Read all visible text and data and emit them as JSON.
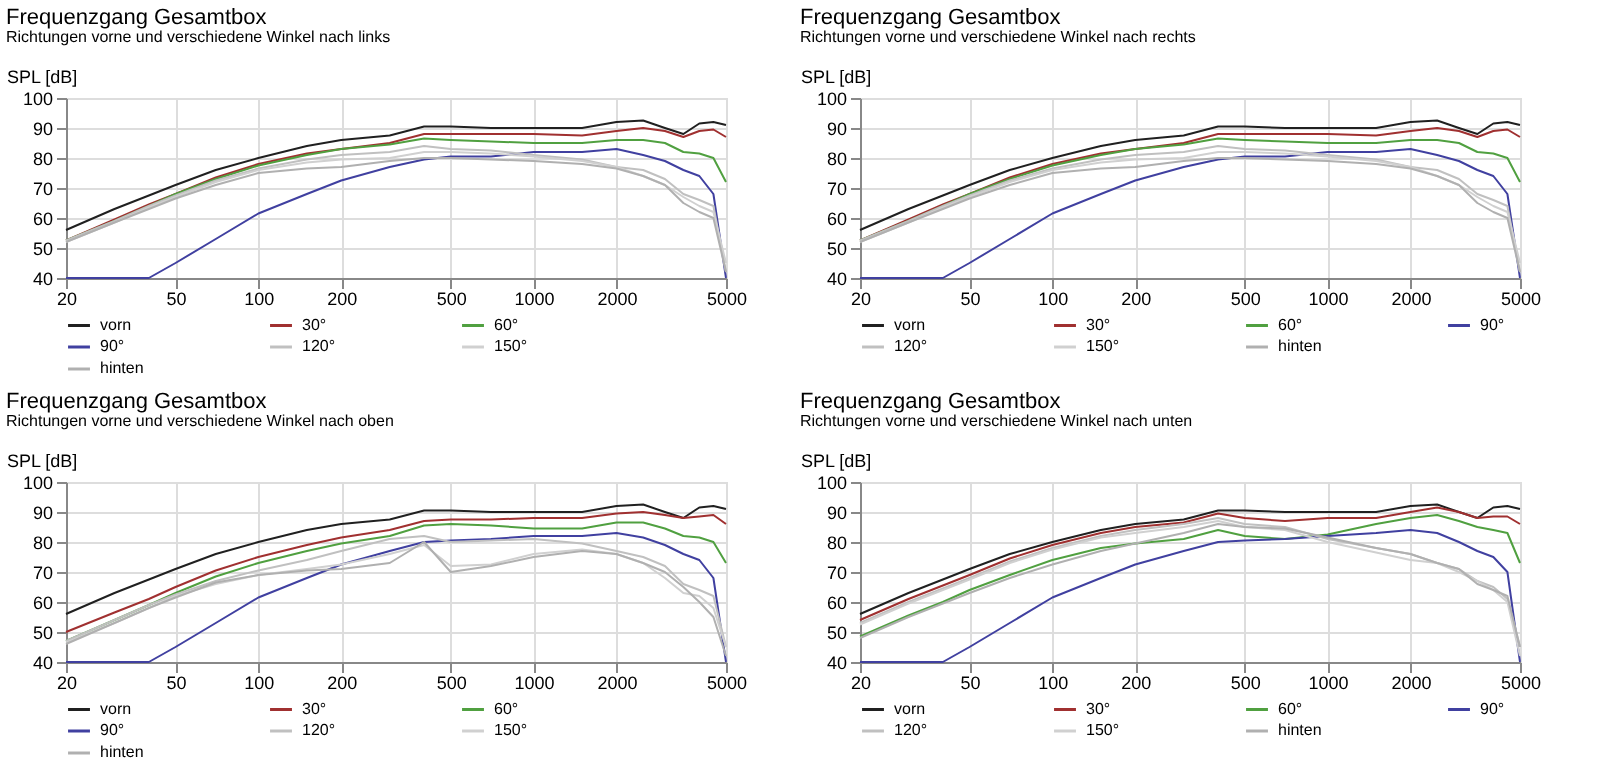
{
  "chart_data": [
    {
      "type": "line",
      "title": "Frequenzgang Gesamtbox",
      "subtitle": "Richtungen vorne und verschiedene Winkel nach links",
      "ylabel": "SPL [dB]",
      "log": "x",
      "grid": true,
      "legend": "bottom",
      "marker": "none",
      "line_style": "solid",
      "xlim": [
        20,
        5000
      ],
      "xticks": [
        20,
        50,
        100,
        200,
        500,
        1000,
        2000,
        5000
      ],
      "ylim": [
        40,
        100
      ],
      "yticks": [
        40,
        50,
        60,
        70,
        80,
        90,
        100
      ],
      "x": [
        20,
        30,
        40,
        50,
        70,
        100,
        150,
        200,
        300,
        400,
        500,
        700,
        1000,
        1500,
        2000,
        2500,
        3000,
        3500,
        4000,
        4500,
        5000
      ],
      "series": [
        {
          "name": "vorn",
          "color": "#202020",
          "values": [
            56,
            63,
            67.5,
            71,
            76,
            80,
            84,
            86,
            87.5,
            90.5,
            90.5,
            90,
            90,
            90,
            92,
            92.5,
            90,
            88,
            91.5,
            92,
            91
          ]
        },
        {
          "name": "30°",
          "color": "#a03030",
          "values": [
            52.5,
            59.5,
            64.5,
            68,
            73.5,
            78,
            81.5,
            83,
            85,
            88,
            88,
            88,
            88,
            87.5,
            89,
            90,
            89,
            87,
            89,
            89.5,
            87
          ]
        },
        {
          "name": "60°",
          "color": "#50a040",
          "values": [
            52.5,
            59,
            64,
            68,
            73,
            77.5,
            81,
            83,
            84.5,
            86.5,
            86,
            85.5,
            85,
            85,
            86,
            86,
            85,
            82,
            81.5,
            80,
            72
          ]
        },
        {
          "name": "90°",
          "color": "#4040a0",
          "values": [
            40,
            40,
            40,
            45,
            53,
            61.5,
            68,
            72.5,
            77,
            79.5,
            80.5,
            80.5,
            82,
            82,
            83,
            81,
            79,
            76,
            74,
            68,
            40
          ]
        },
        {
          "name": "120°",
          "color": "#c0c0c0",
          "values": [
            52.5,
            59,
            64,
            67.5,
            72.5,
            76.5,
            79.5,
            81,
            82,
            84,
            83,
            82.5,
            81,
            79.5,
            77,
            76,
            73,
            68,
            66,
            64,
            42
          ]
        },
        {
          "name": "150°",
          "color": "#d0d0d0",
          "values": [
            52,
            58.5,
            63.5,
            67,
            72,
            76,
            78.5,
            79.5,
            80,
            82,
            82,
            81.5,
            80.5,
            79,
            77,
            74,
            71,
            67,
            64,
            62,
            45
          ]
        },
        {
          "name": "hinten",
          "color": "#b0b0b0",
          "values": [
            52,
            58.5,
            63,
            66.5,
            71,
            75,
            76.5,
            77,
            79,
            80,
            80,
            79.5,
            79,
            78,
            76.5,
            74,
            71,
            65,
            62,
            60,
            42
          ]
        }
      ]
    },
    {
      "type": "line",
      "title": "Frequenzgang Gesamtbox",
      "subtitle": "Richtungen vorne und verschiedene Winkel nach rechts",
      "ylabel": "SPL [dB]",
      "log": "x",
      "grid": true,
      "legend": "bottom",
      "marker": "none",
      "line_style": "solid",
      "xlim": [
        20,
        5000
      ],
      "xticks": [
        20,
        50,
        100,
        200,
        500,
        1000,
        2000,
        5000
      ],
      "ylim": [
        40,
        100
      ],
      "yticks": [
        40,
        50,
        60,
        70,
        80,
        90,
        100
      ],
      "x": [
        20,
        30,
        40,
        50,
        70,
        100,
        150,
        200,
        300,
        400,
        500,
        700,
        1000,
        1500,
        2000,
        2500,
        3000,
        3500,
        4000,
        4500,
        5000
      ],
      "series": [
        {
          "name": "vorn",
          "color": "#202020",
          "values": [
            56,
            63,
            67.5,
            71,
            76,
            80,
            84,
            86,
            87.5,
            90.5,
            90.5,
            90,
            90,
            90,
            92,
            92.5,
            90,
            88,
            91.5,
            92,
            91
          ]
        },
        {
          "name": "30°",
          "color": "#a03030",
          "values": [
            52.5,
            59.5,
            64.5,
            68,
            73.5,
            78,
            81.5,
            83,
            85,
            88,
            88,
            88,
            88,
            87.5,
            89,
            90,
            89,
            87,
            89,
            89.5,
            87
          ]
        },
        {
          "name": "60°",
          "color": "#50a040",
          "values": [
            52.5,
            59,
            64,
            68,
            73,
            77.5,
            81,
            83,
            84.5,
            86.5,
            86,
            85.5,
            85,
            85,
            86,
            86,
            85,
            82,
            81.5,
            80,
            72
          ]
        },
        {
          "name": "90°",
          "color": "#4040a0",
          "values": [
            40,
            40,
            40,
            45,
            53,
            61.5,
            68,
            72.5,
            77,
            79.5,
            80.5,
            80.5,
            82,
            82,
            83,
            81,
            79,
            76,
            74,
            68,
            40
          ]
        },
        {
          "name": "120°",
          "color": "#c0c0c0",
          "values": [
            52.5,
            59,
            64,
            67.5,
            72.5,
            76.5,
            79.5,
            81,
            82,
            84,
            83,
            82.5,
            81,
            79.5,
            77,
            76,
            73,
            68,
            66,
            64,
            42
          ]
        },
        {
          "name": "150°",
          "color": "#d0d0d0",
          "values": [
            52,
            58.5,
            63.5,
            67,
            72,
            76,
            78.5,
            79.5,
            80,
            82,
            82,
            81.5,
            80.5,
            79,
            77,
            74,
            71,
            67,
            64,
            62,
            45
          ]
        },
        {
          "name": "hinten",
          "color": "#b0b0b0",
          "values": [
            52,
            58.5,
            63,
            66.5,
            71,
            75,
            76.5,
            77,
            79,
            80,
            80,
            79.5,
            79,
            78,
            76.5,
            74,
            71,
            65,
            62,
            60,
            42
          ]
        }
      ]
    },
    {
      "type": "line",
      "title": "Frequenzgang Gesamtbox",
      "subtitle": "Richtungen vorne und verschiedene Winkel nach oben",
      "ylabel": "SPL [dB]",
      "log": "x",
      "grid": true,
      "legend": "bottom",
      "marker": "none",
      "line_style": "solid",
      "xlim": [
        20,
        5000
      ],
      "xticks": [
        20,
        50,
        100,
        200,
        500,
        1000,
        2000,
        5000
      ],
      "ylim": [
        40,
        100
      ],
      "yticks": [
        40,
        50,
        60,
        70,
        80,
        90,
        100
      ],
      "x": [
        20,
        30,
        40,
        50,
        70,
        100,
        150,
        200,
        300,
        400,
        500,
        700,
        1000,
        1500,
        2000,
        2500,
        3000,
        3500,
        4000,
        4500,
        5000
      ],
      "series": [
        {
          "name": "vorn",
          "color": "#202020",
          "values": [
            56,
            63,
            67.5,
            71,
            76,
            80,
            84,
            86,
            87.5,
            90.5,
            90.5,
            90,
            90,
            90,
            92,
            92.5,
            90,
            88,
            91.5,
            92,
            91
          ]
        },
        {
          "name": "30°",
          "color": "#a03030",
          "values": [
            50,
            56.5,
            61,
            65,
            70.5,
            75,
            79,
            81.5,
            84,
            87,
            87.5,
            87.5,
            88,
            88,
            89.5,
            90,
            89,
            88,
            88.5,
            89,
            86
          ]
        },
        {
          "name": "60°",
          "color": "#50a040",
          "values": [
            47,
            54,
            59,
            63,
            68.5,
            73,
            77,
            79.5,
            82,
            85.5,
            86,
            85.5,
            84.5,
            84.5,
            86.5,
            86.5,
            84.5,
            82,
            81.5,
            80,
            73
          ]
        },
        {
          "name": "90°",
          "color": "#4040a0",
          "values": [
            40,
            40,
            40,
            45,
            53,
            61.5,
            68,
            72.5,
            77,
            80,
            80.5,
            81,
            82,
            82,
            83,
            81.5,
            79,
            76,
            74,
            68,
            40
          ]
        },
        {
          "name": "120°",
          "color": "#c0c0c0",
          "values": [
            47,
            54,
            59,
            62.5,
            67,
            70.5,
            74,
            77,
            81,
            82,
            80,
            80.5,
            81,
            79.5,
            77,
            75,
            72,
            66,
            64,
            62,
            45
          ]
        },
        {
          "name": "150°",
          "color": "#d0d0d0",
          "values": [
            46.5,
            53,
            58,
            62,
            66,
            69,
            71,
            72.5,
            76,
            79,
            72,
            72.5,
            76,
            77.5,
            76,
            73,
            68,
            63,
            62,
            58,
            45
          ]
        },
        {
          "name": "hinten",
          "color": "#b0b0b0",
          "values": [
            46,
            53,
            58,
            61.5,
            66.5,
            69,
            70.5,
            71,
            73,
            80,
            70,
            72,
            75,
            77,
            76,
            73,
            70,
            65,
            60,
            55,
            42
          ]
        }
      ]
    },
    {
      "type": "line",
      "title": "Frequenzgang Gesamtbox",
      "subtitle": "Richtungen vorne und verschiedene Winkel nach unten",
      "ylabel": "SPL [dB]",
      "log": "x",
      "grid": true,
      "legend": "bottom",
      "marker": "none",
      "line_style": "solid",
      "xlim": [
        20,
        5000
      ],
      "xticks": [
        20,
        50,
        100,
        200,
        500,
        1000,
        2000,
        5000
      ],
      "ylim": [
        40,
        100
      ],
      "yticks": [
        40,
        50,
        60,
        70,
        80,
        90,
        100
      ],
      "x": [
        20,
        30,
        40,
        50,
        70,
        100,
        150,
        200,
        300,
        400,
        500,
        700,
        1000,
        1500,
        2000,
        2500,
        3000,
        3500,
        4000,
        4500,
        5000
      ],
      "series": [
        {
          "name": "vorn",
          "color": "#202020",
          "values": [
            56,
            63,
            67.5,
            71,
            76,
            80,
            84,
            86,
            87.5,
            90.5,
            90.5,
            90,
            90,
            90,
            92,
            92.5,
            90,
            88,
            91.5,
            92,
            91
          ]
        },
        {
          "name": "30°",
          "color": "#a03030",
          "values": [
            54,
            61,
            65.5,
            69,
            74.5,
            79,
            83,
            85,
            86.5,
            89.5,
            88,
            87,
            88,
            88,
            90,
            91.5,
            90,
            88,
            88.5,
            88.5,
            86
          ]
        },
        {
          "name": "60°",
          "color": "#50a040",
          "values": [
            48.5,
            55.5,
            60,
            64,
            69,
            74,
            78,
            79.5,
            81,
            84,
            82,
            81,
            82.5,
            86,
            88,
            89,
            87,
            85,
            84,
            83,
            73
          ]
        },
        {
          "name": "90°",
          "color": "#4040a0",
          "values": [
            40,
            40,
            40,
            45,
            53,
            61.5,
            68,
            72.5,
            77,
            80,
            80.5,
            81,
            82,
            83,
            84,
            83,
            80,
            77,
            75,
            70,
            40
          ]
        },
        {
          "name": "120°",
          "color": "#c0c0c0",
          "values": [
            53,
            60,
            64.5,
            68,
            73.5,
            78,
            82,
            84,
            86,
            88,
            86,
            85,
            81,
            78,
            76,
            73,
            71,
            67,
            65,
            61,
            45
          ]
        },
        {
          "name": "150°",
          "color": "#d0d0d0",
          "values": [
            52.5,
            59.5,
            64,
            67.5,
            73,
            77.5,
            81.5,
            83,
            85,
            87,
            85,
            84,
            80,
            76.5,
            74,
            73,
            70,
            67,
            64,
            60,
            42
          ]
        },
        {
          "name": "hinten",
          "color": "#b0b0b0",
          "values": [
            48,
            55,
            59.5,
            63,
            68,
            72.5,
            77,
            79.5,
            83,
            86,
            85,
            84.5,
            81.5,
            78,
            76,
            73,
            71,
            66,
            64,
            62,
            45
          ]
        }
      ]
    }
  ]
}
